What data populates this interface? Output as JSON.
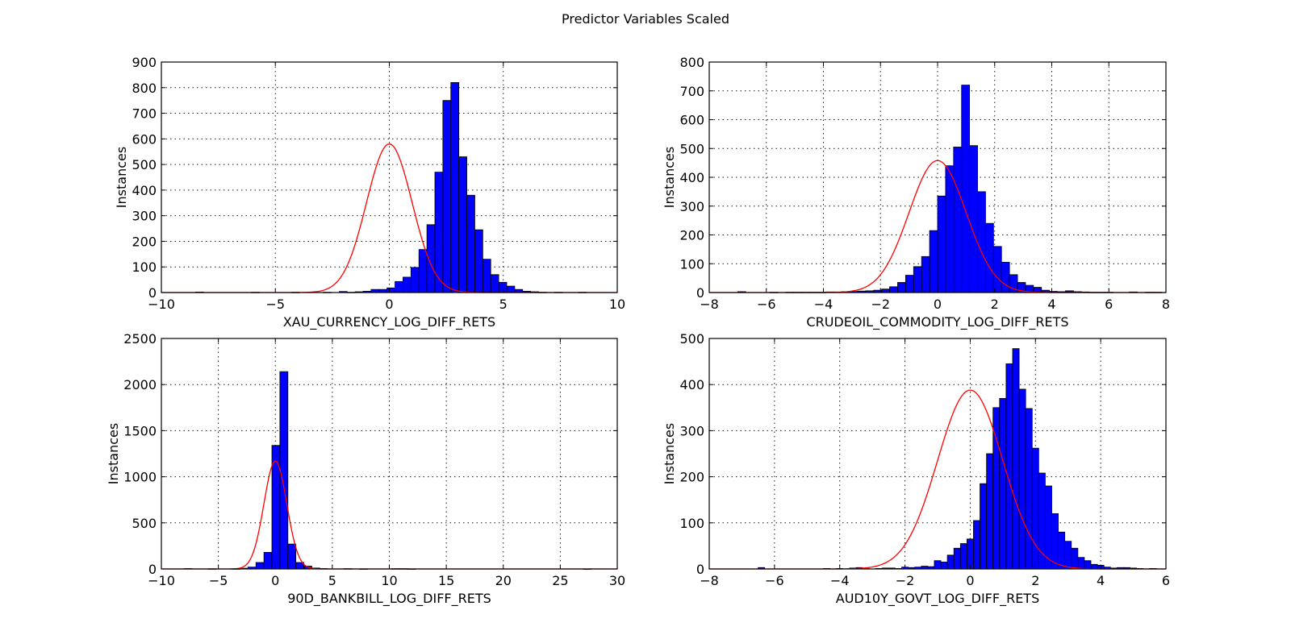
{
  "figure": {
    "title": "Predictor Variables Scaled"
  },
  "chart_data": [
    {
      "type": "bar",
      "xlabel": "XAU_CURRENCY_LOG_DIFF_RETS",
      "ylabel": "Instances",
      "xlim": [
        -10,
        10
      ],
      "ylim": [
        0,
        900
      ],
      "xticks": [
        -10,
        -5,
        0,
        5,
        10
      ],
      "yticks": [
        0,
        100,
        200,
        300,
        400,
        500,
        600,
        700,
        800,
        900
      ],
      "xtick_labels": [
        "−10",
        "−5",
        "0",
        "5",
        "10"
      ],
      "ytick_labels": [
        "0",
        "100",
        "200",
        "300",
        "400",
        "500",
        "600",
        "700",
        "800",
        "900"
      ],
      "grid": true,
      "bin_start": -8.5,
      "bin_width": 0.35,
      "counts": [
        2,
        0,
        0,
        0,
        0,
        0,
        0,
        1,
        0,
        0,
        0,
        0,
        1,
        0,
        0,
        0,
        1,
        0,
        4,
        1,
        3,
        5,
        12,
        12,
        18,
        43,
        60,
        98,
        168,
        265,
        470,
        750,
        820,
        530,
        380,
        245,
        130,
        70,
        40,
        25,
        12,
        5,
        3,
        1,
        0,
        1,
        0,
        0,
        1,
        0,
        0,
        0,
        0,
        0,
        0,
        0,
        0,
        0,
        0,
        0,
        0,
        0,
        0,
        0,
        0,
        0,
        0,
        0,
        0,
        0,
        0,
        0,
        1,
        0,
        0
      ],
      "normal_fit": {
        "mean": 0,
        "sd": 1,
        "peak": 580
      }
    },
    {
      "type": "bar",
      "xlabel": "CRUDEOIL_COMMODITY_LOG_DIFF_RETS",
      "ylabel": "Instances",
      "xlim": [
        -8,
        8
      ],
      "ylim": [
        0,
        800
      ],
      "xticks": [
        -8,
        -6,
        -4,
        -2,
        0,
        2,
        4,
        6,
        8
      ],
      "yticks": [
        0,
        100,
        200,
        300,
        400,
        500,
        600,
        700,
        800
      ],
      "xtick_labels": [
        "−8",
        "−6",
        "−4",
        "−2",
        "0",
        "2",
        "4",
        "6",
        "8"
      ],
      "ytick_labels": [
        "0",
        "100",
        "200",
        "300",
        "400",
        "500",
        "600",
        "700",
        "800"
      ],
      "grid": true,
      "bin_start": -7.0,
      "bin_width": 0.28,
      "counts": [
        3,
        0,
        0,
        0,
        0,
        0,
        1,
        1,
        1,
        1,
        1,
        2,
        2,
        3,
        4,
        5,
        6,
        8,
        12,
        20,
        35,
        60,
        90,
        125,
        215,
        335,
        440,
        505,
        720,
        510,
        350,
        240,
        160,
        105,
        62,
        35,
        25,
        18,
        8,
        4,
        3,
        6,
        3,
        2,
        1,
        1,
        1,
        0,
        0,
        2,
        0,
        1,
        1,
        0,
        0,
        0,
        0,
        0,
        0,
        0
      ],
      "normal_fit": {
        "mean": 0,
        "sd": 1,
        "peak": 458
      }
    },
    {
      "type": "bar",
      "xlabel": "90D_BANKBILL_LOG_DIFF_RETS",
      "ylabel": "Instances",
      "xlim": [
        -10,
        30
      ],
      "ylim": [
        0,
        2500
      ],
      "xticks": [
        -10,
        -5,
        0,
        5,
        10,
        15,
        20,
        25,
        30
      ],
      "yticks": [
        0,
        500,
        1000,
        1500,
        2000,
        2500
      ],
      "xtick_labels": [
        "−10",
        "−5",
        "0",
        "5",
        "10",
        "15",
        "20",
        "25",
        "30"
      ],
      "ytick_labels": [
        "0",
        "500",
        "1000",
        "1500",
        "2000",
        "2500"
      ],
      "grid": true,
      "bin_start": -8.0,
      "bin_width": 0.7,
      "counts": [
        4,
        0,
        0,
        2,
        0,
        0,
        2,
        8,
        20,
        70,
        180,
        1340,
        2140,
        270,
        70,
        30,
        10,
        4,
        0,
        0,
        3,
        0,
        1,
        0,
        0,
        0,
        3,
        3,
        1,
        0,
        0,
        0,
        0,
        0,
        0,
        0,
        0,
        0,
        0,
        0,
        0,
        0,
        0,
        0,
        0,
        0,
        0,
        0,
        0,
        0,
        1
      ],
      "normal_fit": {
        "mean": 0,
        "sd": 1,
        "peak": 1170
      }
    },
    {
      "type": "bar",
      "xlabel": "AUD10Y_GOVT_LOG_DIFF_RETS",
      "ylabel": "Instances",
      "xlim": [
        -8,
        6
      ],
      "ylim": [
        0,
        500
      ],
      "xticks": [
        -8,
        -6,
        -4,
        -2,
        0,
        2,
        4,
        6
      ],
      "yticks": [
        0,
        100,
        200,
        300,
        400,
        500
      ],
      "xtick_labels": [
        "−8",
        "−6",
        "−4",
        "−2",
        "0",
        "2",
        "4",
        "6"
      ],
      "ytick_labels": [
        "0",
        "100",
        "200",
        "300",
        "400",
        "500"
      ],
      "grid": true,
      "bin_start": -6.5,
      "bin_width": 0.2,
      "counts": [
        3,
        0,
        0,
        0,
        0,
        0,
        0,
        0,
        0,
        0,
        1,
        0,
        1,
        0,
        2,
        3,
        1,
        0,
        1,
        2,
        2,
        1,
        4,
        3,
        4,
        6,
        5,
        18,
        15,
        30,
        45,
        55,
        65,
        105,
        185,
        250,
        350,
        370,
        445,
        478,
        390,
        348,
        262,
        208,
        180,
        120,
        80,
        60,
        45,
        25,
        18,
        10,
        8,
        4,
        2,
        3,
        3,
        2,
        1,
        0,
        1,
        0
      ],
      "normal_fit": {
        "mean": 0,
        "sd": 1,
        "peak": 388
      }
    }
  ]
}
